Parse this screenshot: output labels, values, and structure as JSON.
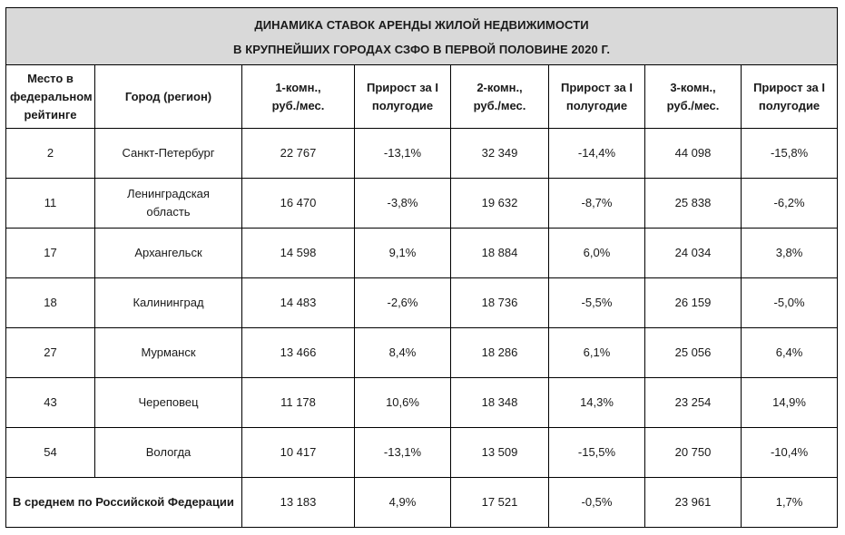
{
  "title": {
    "line1": "ДИНАМИКА СТАВОК АРЕНДЫ ЖИЛОЙ НЕДВИЖИМОСТИ",
    "line2": "В КРУПНЕЙШИХ ГОРОДАХ СЗФО В ПЕРВОЙ ПОЛОВИНЕ 2020 Г."
  },
  "headers": {
    "rank": [
      "Место в",
      "федеральном",
      "рейтинге"
    ],
    "city": [
      "Город (регион)"
    ],
    "room1": [
      "1-комн.,",
      "руб./мес."
    ],
    "growth1": [
      "Прирост за I",
      "полугодие"
    ],
    "room2": [
      "2-комн.,",
      "руб./мес."
    ],
    "growth2": [
      "Прирост за I",
      "полугодие"
    ],
    "room3": [
      "3-комн.,",
      "руб./мес."
    ],
    "growth3": [
      "Прирост за I",
      "полугодие"
    ]
  },
  "rows": [
    {
      "rank": "2",
      "city": [
        "Санкт-Петербург"
      ],
      "r1": "22 767",
      "g1": "-13,1%",
      "r2": "32 349",
      "g2": "-14,4%",
      "r3": "44 098",
      "g3": "-15,8%"
    },
    {
      "rank": "11",
      "city": [
        "Ленинградская",
        "область"
      ],
      "r1": "16 470",
      "g1": "-3,8%",
      "r2": "19 632",
      "g2": "-8,7%",
      "r3": "25 838",
      "g3": "-6,2%"
    },
    {
      "rank": "17",
      "city": [
        "Архангельск"
      ],
      "r1": "14 598",
      "g1": "9,1%",
      "r2": "18 884",
      "g2": "6,0%",
      "r3": "24 034",
      "g3": "3,8%"
    },
    {
      "rank": "18",
      "city": [
        "Калининград"
      ],
      "r1": "14 483",
      "g1": "-2,6%",
      "r2": "18 736",
      "g2": "-5,5%",
      "r3": "26 159",
      "g3": "-5,0%"
    },
    {
      "rank": "27",
      "city": [
        "Мурманск"
      ],
      "r1": "13 466",
      "g1": "8,4%",
      "r2": "18 286",
      "g2": "6,1%",
      "r3": "25 056",
      "g3": "6,4%"
    },
    {
      "rank": "43",
      "city": [
        "Череповец"
      ],
      "r1": "11 178",
      "g1": "10,6%",
      "r2": "18 348",
      "g2": "14,3%",
      "r3": "23 254",
      "g3": "14,9%"
    },
    {
      "rank": "54",
      "city": [
        "Вологда"
      ],
      "r1": "10 417",
      "g1": "-13,1%",
      "r2": "13 509",
      "g2": "-15,5%",
      "r3": "20 750",
      "g3": "-10,4%"
    }
  ],
  "average": {
    "label": "В среднем по Российской Федерации",
    "r1": "13 183",
    "g1": "4,9%",
    "r2": "17 521",
    "g2": "-0,5%",
    "r3": "23 961",
    "g3": "1,7%"
  }
}
